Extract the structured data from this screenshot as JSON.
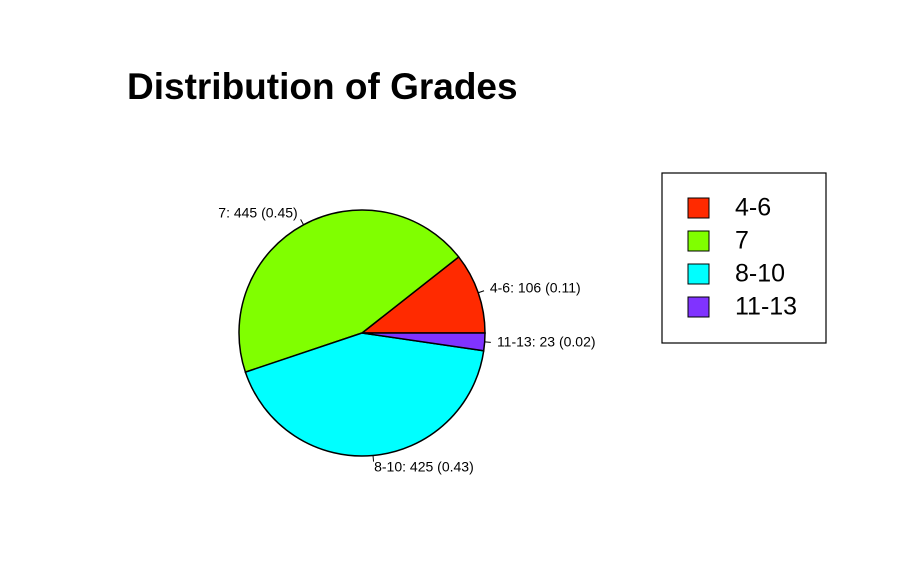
{
  "chart_data": {
    "type": "pie",
    "title": "Distribution of Grades",
    "categories": [
      "4-6",
      "7",
      "8-10",
      "11-13"
    ],
    "values": [
      106,
      445,
      425,
      23
    ],
    "value_labels": [
      "4-6: 106 (0.11)",
      "7: 445 (0.45)",
      "8-10: 425 (0.43)",
      "11-13: 23 (0.02)"
    ],
    "colors": [
      "#ff2a00",
      "#80ff00",
      "#00ffff",
      "#8033ff"
    ],
    "legend": "right"
  }
}
